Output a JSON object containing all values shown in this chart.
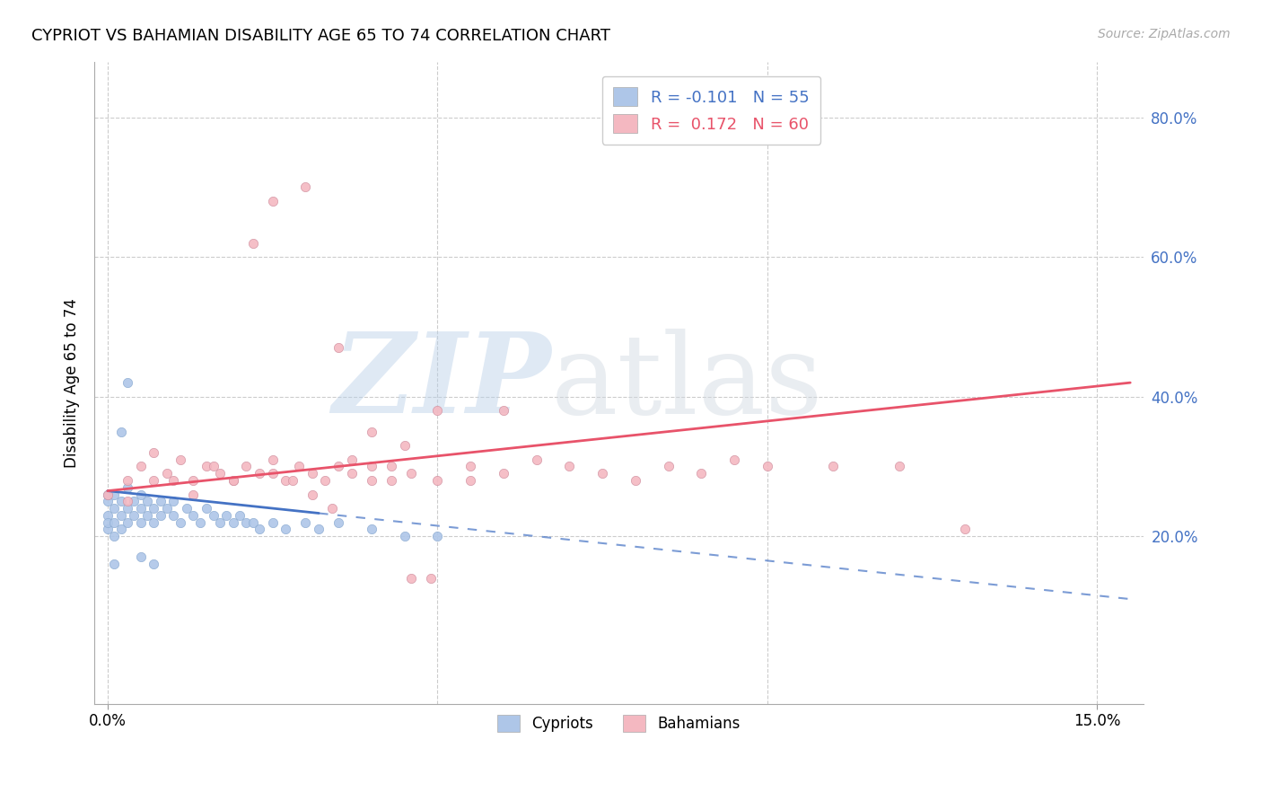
{
  "title": "CYPRIOT VS BAHAMIAN DISABILITY AGE 65 TO 74 CORRELATION CHART",
  "source": "Source: ZipAtlas.com",
  "ylabel": "Disability Age 65 to 74",
  "legend_label1": "R = -0.101   N = 55",
  "legend_label2": "R =  0.172   N = 60",
  "legend_label_bottom1": "Cypriots",
  "legend_label_bottom2": "Bahamians",
  "cypriot_color": "#aec6e8",
  "bahamian_color": "#f4b8c1",
  "cypriot_line_color": "#4472c4",
  "bahamian_line_color": "#e8536a",
  "background_color": "#ffffff",
  "grid_color": "#cccccc",
  "right_axis_color": "#4472c4",
  "watermark_zip": "ZIP",
  "watermark_atlas": "atlas",
  "xlim_min": -0.002,
  "xlim_max": 0.157,
  "ylim_min": -0.04,
  "ylim_max": 0.88,
  "x_ticks": [
    0.0,
    0.15
  ],
  "y_ticks_right": [
    0.2,
    0.4,
    0.6,
    0.8
  ],
  "y_ticks_right_labels": [
    "20.0%",
    "40.0%",
    "60.0%",
    "80.0%"
  ],
  "cypriot_x": [
    0.0,
    0.0,
    0.0,
    0.0,
    0.0,
    0.001,
    0.001,
    0.001,
    0.001,
    0.002,
    0.002,
    0.002,
    0.003,
    0.003,
    0.003,
    0.004,
    0.004,
    0.005,
    0.005,
    0.005,
    0.006,
    0.006,
    0.007,
    0.007,
    0.008,
    0.008,
    0.009,
    0.01,
    0.01,
    0.011,
    0.012,
    0.013,
    0.014,
    0.015,
    0.016,
    0.017,
    0.018,
    0.019,
    0.02,
    0.021,
    0.022,
    0.023,
    0.025,
    0.027,
    0.03,
    0.032,
    0.035,
    0.04,
    0.045,
    0.05,
    0.003,
    0.005,
    0.007,
    0.001,
    0.002
  ],
  "cypriot_y": [
    0.25,
    0.23,
    0.21,
    0.26,
    0.22,
    0.24,
    0.26,
    0.22,
    0.2,
    0.25,
    0.23,
    0.21,
    0.27,
    0.24,
    0.22,
    0.25,
    0.23,
    0.26,
    0.24,
    0.22,
    0.25,
    0.23,
    0.24,
    0.22,
    0.25,
    0.23,
    0.24,
    0.25,
    0.23,
    0.22,
    0.24,
    0.23,
    0.22,
    0.24,
    0.23,
    0.22,
    0.23,
    0.22,
    0.23,
    0.22,
    0.22,
    0.21,
    0.22,
    0.21,
    0.22,
    0.21,
    0.22,
    0.21,
    0.2,
    0.2,
    0.42,
    0.17,
    0.16,
    0.16,
    0.35
  ],
  "bahamian_x": [
    0.0,
    0.003,
    0.005,
    0.007,
    0.009,
    0.011,
    0.013,
    0.015,
    0.017,
    0.019,
    0.021,
    0.023,
    0.025,
    0.027,
    0.029,
    0.031,
    0.033,
    0.035,
    0.037,
    0.04,
    0.043,
    0.046,
    0.05,
    0.055,
    0.06,
    0.065,
    0.07,
    0.075,
    0.08,
    0.085,
    0.09,
    0.095,
    0.1,
    0.11,
    0.12,
    0.13,
    0.025,
    0.03,
    0.035,
    0.04,
    0.045,
    0.05,
    0.055,
    0.06,
    0.003,
    0.007,
    0.01,
    0.013,
    0.016,
    0.019,
    0.022,
    0.025,
    0.028,
    0.031,
    0.034,
    0.037,
    0.04,
    0.043,
    0.046,
    0.049
  ],
  "bahamian_y": [
    0.26,
    0.28,
    0.3,
    0.28,
    0.29,
    0.31,
    0.28,
    0.3,
    0.29,
    0.28,
    0.3,
    0.29,
    0.31,
    0.28,
    0.3,
    0.29,
    0.28,
    0.3,
    0.29,
    0.28,
    0.3,
    0.29,
    0.28,
    0.3,
    0.29,
    0.31,
    0.3,
    0.29,
    0.28,
    0.3,
    0.29,
    0.31,
    0.3,
    0.3,
    0.3,
    0.21,
    0.68,
    0.7,
    0.47,
    0.35,
    0.33,
    0.38,
    0.28,
    0.38,
    0.25,
    0.32,
    0.28,
    0.26,
    0.3,
    0.28,
    0.62,
    0.29,
    0.28,
    0.26,
    0.24,
    0.31,
    0.3,
    0.28,
    0.14,
    0.14
  ],
  "cyp_line_x_solid_start": 0.0,
  "cyp_line_x_solid_end": 0.032,
  "cyp_line_x_dash_start": 0.032,
  "cyp_line_x_dash_end": 0.155,
  "bah_line_x_start": 0.0,
  "bah_line_x_end": 0.155
}
